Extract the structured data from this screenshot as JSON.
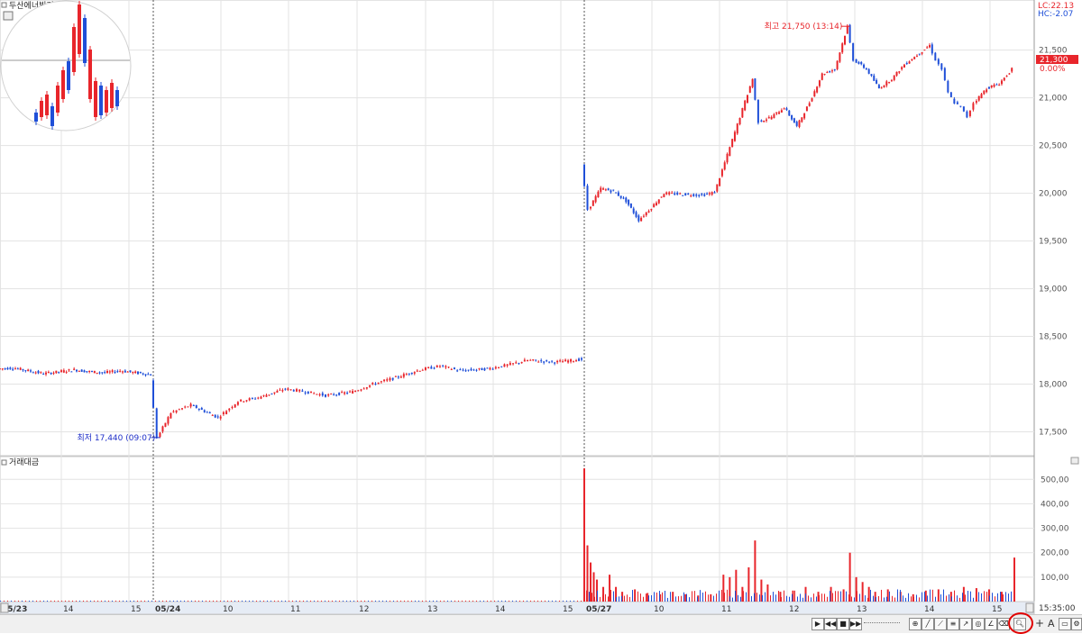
{
  "window": {
    "price_panel_title": "두산에너빌리티",
    "volume_panel_title": "거래대금",
    "lc_label": "LC:22.13",
    "hc_label": "HC:-2.07",
    "last_price_box": "21,300",
    "last_change": "0.00%",
    "time_label": "15:35:00"
  },
  "colors": {
    "up": "#e8252b",
    "down": "#1f4fd8",
    "grid": "#e3e3e3",
    "axis_text": "#555555",
    "high_marker": "#e8252b",
    "low_marker": "#1f2fc8",
    "price_box_bg": "#e8252b",
    "lc_text": "#e8252b",
    "hc_text": "#1f4fd8"
  },
  "chart_data": {
    "type": "line",
    "subtype": "intraday-candlestick",
    "days": [
      "05/23",
      "05/24",
      "05/27"
    ],
    "x_ticks": [
      "05/23",
      "14",
      "15",
      "05/24",
      "10",
      "11",
      "12",
      "13",
      "14",
      "15",
      "05/27",
      "10",
      "11",
      "12",
      "13",
      "14",
      "15"
    ],
    "price_axis": {
      "ticks": [
        "21,500",
        "21,000",
        "20,500",
        "20,000",
        "19,500",
        "19,000",
        "18,500",
        "18,000",
        "17,500"
      ],
      "ylim": [
        17250,
        21950
      ]
    },
    "volume_axis": {
      "ticks": [
        "500,00",
        "400,00",
        "300,00",
        "200,00",
        "100,00"
      ],
      "ylim": [
        0,
        560
      ]
    },
    "annotations": {
      "high": {
        "text": "최고 21,750 (13:14)",
        "value": 21750
      },
      "low": {
        "text": "최저 17,440 (09:07)",
        "value": 17440
      }
    },
    "series": [
      {
        "day": "05/23",
        "start_x": 0,
        "end_x": 3,
        "points": [
          [
            0,
            18160
          ],
          [
            0.3,
            18170
          ],
          [
            0.6,
            18140
          ],
          [
            0.9,
            18110
          ],
          [
            1.2,
            18130
          ],
          [
            1.5,
            18150
          ],
          [
            1.8,
            18130
          ],
          [
            2.1,
            18120
          ],
          [
            2.4,
            18140
          ],
          [
            2.7,
            18120
          ],
          [
            3.0,
            18100
          ]
        ]
      },
      {
        "day": "05/24",
        "start_x": 3,
        "end_x": 9.4,
        "points": [
          [
            3.0,
            18050
          ],
          [
            3.1,
            17440
          ],
          [
            3.3,
            17700
          ],
          [
            3.6,
            17780
          ],
          [
            4.0,
            17650
          ],
          [
            4.3,
            17820
          ],
          [
            4.6,
            17860
          ],
          [
            5.0,
            17950
          ],
          [
            5.3,
            17920
          ],
          [
            5.6,
            17880
          ],
          [
            6.0,
            17920
          ],
          [
            6.3,
            18000
          ],
          [
            6.6,
            18060
          ],
          [
            7.0,
            18150
          ],
          [
            7.3,
            18190
          ],
          [
            7.6,
            18140
          ],
          [
            8.0,
            18160
          ],
          [
            8.3,
            18200
          ],
          [
            8.6,
            18250
          ],
          [
            9.0,
            18230
          ],
          [
            9.4,
            18260
          ]
        ]
      },
      {
        "day": "05/27",
        "start_x": 9.4,
        "end_x": 15.4,
        "points": [
          [
            9.4,
            20300
          ],
          [
            9.5,
            19830
          ],
          [
            9.7,
            20050
          ],
          [
            9.9,
            20020
          ],
          [
            10.1,
            19920
          ],
          [
            10.3,
            19720
          ],
          [
            10.5,
            19850
          ],
          [
            10.7,
            20000
          ],
          [
            11.0,
            19990
          ],
          [
            11.3,
            19980
          ],
          [
            11.5,
            20010
          ],
          [
            11.7,
            20400
          ],
          [
            11.9,
            20800
          ],
          [
            12.1,
            21200
          ],
          [
            12.2,
            20750
          ],
          [
            12.4,
            20800
          ],
          [
            12.6,
            20900
          ],
          [
            12.8,
            20700
          ],
          [
            13.0,
            20950
          ],
          [
            13.2,
            21250
          ],
          [
            13.4,
            21300
          ],
          [
            13.6,
            21750
          ],
          [
            13.7,
            21400
          ],
          [
            13.9,
            21300
          ],
          [
            14.1,
            21100
          ],
          [
            14.3,
            21200
          ],
          [
            14.5,
            21350
          ],
          [
            14.7,
            21450
          ],
          [
            14.9,
            21550
          ],
          [
            15.0,
            21400
          ],
          [
            15.1,
            21300
          ],
          [
            15.2,
            21050
          ],
          [
            15.3,
            20950
          ],
          [
            15.4,
            20900
          ],
          [
            15.5,
            20800
          ],
          [
            15.6,
            20950
          ],
          [
            15.8,
            21100
          ],
          [
            16.0,
            21150
          ],
          [
            16.2,
            21300
          ]
        ]
      }
    ],
    "volume_bars": [
      [
        9.4,
        545
      ],
      [
        9.45,
        230
      ],
      [
        9.5,
        160
      ],
      [
        9.55,
        120
      ],
      [
        9.6,
        90
      ],
      [
        9.7,
        60
      ],
      [
        9.8,
        110
      ],
      [
        9.9,
        60
      ],
      [
        10.0,
        40
      ],
      [
        10.2,
        50
      ],
      [
        10.4,
        35
      ],
      [
        10.6,
        30
      ],
      [
        10.8,
        40
      ],
      [
        11.0,
        30
      ],
      [
        11.2,
        25
      ],
      [
        11.4,
        30
      ],
      [
        11.6,
        110
      ],
      [
        11.7,
        100
      ],
      [
        11.8,
        130
      ],
      [
        11.9,
        60
      ],
      [
        12.0,
        140
      ],
      [
        12.1,
        250
      ],
      [
        12.2,
        90
      ],
      [
        12.3,
        70
      ],
      [
        12.5,
        40
      ],
      [
        12.7,
        45
      ],
      [
        12.9,
        60
      ],
      [
        13.1,
        40
      ],
      [
        13.3,
        60
      ],
      [
        13.5,
        50
      ],
      [
        13.6,
        200
      ],
      [
        13.7,
        100
      ],
      [
        13.8,
        80
      ],
      [
        13.9,
        60
      ],
      [
        14.0,
        40
      ],
      [
        14.2,
        50
      ],
      [
        14.4,
        40
      ],
      [
        14.6,
        30
      ],
      [
        14.8,
        45
      ],
      [
        15.0,
        50
      ],
      [
        15.2,
        40
      ],
      [
        15.4,
        60
      ],
      [
        15.6,
        55
      ],
      [
        15.8,
        50
      ],
      [
        16.0,
        40
      ],
      [
        16.2,
        180
      ]
    ]
  },
  "toolbar": {
    "play_label": "▶",
    "prev_label": "◀◀",
    "stop_label": "■",
    "next_label": "▶▶",
    "plus_label": "+",
    "text_label": "A"
  }
}
